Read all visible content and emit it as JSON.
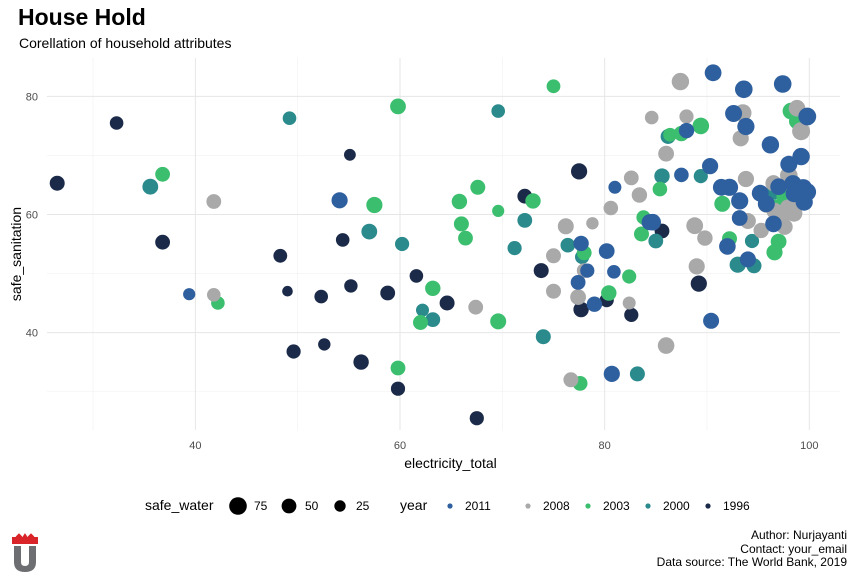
{
  "title": "House Hold",
  "subtitle": "Corellation of household attributes",
  "caption": {
    "author": "Author: Nurjayanti",
    "contact": "Contact: your_email",
    "source": "Data source: The World Bank, 2019"
  },
  "legend": {
    "size_title": "safe_water",
    "size_items": [
      {
        "label": "75",
        "value": 75
      },
      {
        "label": "50",
        "value": 50
      },
      {
        "label": "25",
        "value": 25
      }
    ],
    "color_title": "year",
    "color_items": [
      {
        "label": "2011",
        "color": "#2e5f9e"
      },
      {
        "label": "2008",
        "color": "#a9a9a9"
      },
      {
        "label": "2003",
        "color": "#3bbf6f"
      },
      {
        "label": "2000",
        "color": "#2a8a8c"
      },
      {
        "label": "1996",
        "color": "#1b2a48"
      }
    ]
  },
  "logo": {
    "name": "university-logo",
    "colors": [
      "#d9252a",
      "#6d6e71"
    ]
  },
  "chart_data": {
    "type": "scatter",
    "xlabel": "electricity_total",
    "ylabel": "safe_sanitation",
    "xlim": [
      25.5,
      103
    ],
    "ylim": [
      23.5,
      86.5
    ],
    "xticks": [
      40,
      60,
      80,
      100
    ],
    "yticks": [
      40,
      60,
      80
    ],
    "grid": true,
    "legend_position": "bottom",
    "series": [
      {
        "name": "2011",
        "color": "#2e5f9e",
        "points": [
          [
            39.4,
            46.5,
            30
          ],
          [
            54.1,
            62.4,
            62
          ],
          [
            77.7,
            55.1,
            55
          ],
          [
            80.2,
            53.8,
            58
          ],
          [
            80.9,
            50.3,
            40
          ],
          [
            81.0,
            64.6,
            35
          ],
          [
            84.4,
            58.7,
            62
          ],
          [
            84.7,
            58.7,
            65
          ],
          [
            87.5,
            66.7,
            48
          ],
          [
            88.0,
            74.2,
            55
          ],
          [
            90.6,
            84.0,
            68
          ],
          [
            90.3,
            68.2,
            62
          ],
          [
            91.4,
            64.6,
            68
          ],
          [
            92.2,
            64.6,
            72
          ],
          [
            92.6,
            77.1,
            70
          ],
          [
            93.2,
            62.3,
            72
          ],
          [
            93.8,
            74.9,
            72
          ],
          [
            93.6,
            81.2,
            75
          ],
          [
            95.2,
            63.6,
            68
          ],
          [
            95.8,
            61.8,
            70
          ],
          [
            96.2,
            71.8,
            74
          ],
          [
            97.0,
            64.7,
            65
          ],
          [
            97.4,
            82.1,
            76
          ],
          [
            98.0,
            68.5,
            70
          ],
          [
            98.4,
            65.2,
            74
          ],
          [
            99.0,
            64.2,
            78
          ],
          [
            99.2,
            69.8,
            74
          ],
          [
            99.4,
            64.5,
            76
          ],
          [
            99.5,
            62.1,
            72
          ],
          [
            99.8,
            76.6,
            78
          ],
          [
            99.8,
            63.8,
            76
          ],
          [
            96.5,
            58.4,
            66
          ],
          [
            90.4,
            42.0,
            60
          ],
          [
            80.7,
            33.0,
            62
          ],
          [
            78.3,
            50.5,
            45
          ],
          [
            92.0,
            54.6,
            66
          ],
          [
            94.0,
            52.4,
            60
          ],
          [
            79.0,
            44.8,
            55
          ],
          [
            77.4,
            48.5,
            50
          ],
          [
            93.2,
            59.4,
            58
          ],
          [
            98.5,
            63.5,
            68
          ]
        ]
      },
      {
        "name": "2008",
        "color": "#a9a9a9",
        "points": [
          [
            41.8,
            62.2,
            50
          ],
          [
            41.8,
            46.4,
            40
          ],
          [
            67.4,
            44.3,
            50
          ],
          [
            75.0,
            53.0,
            52
          ],
          [
            75.0,
            47.0,
            52
          ],
          [
            76.2,
            58.0,
            60
          ],
          [
            76.7,
            32.0,
            52
          ],
          [
            77.4,
            46.0,
            58
          ],
          [
            78.0,
            50.5,
            50
          ],
          [
            78.8,
            58.5,
            32
          ],
          [
            80.6,
            61.1,
            48
          ],
          [
            82.4,
            45.0,
            35
          ],
          [
            82.6,
            66.2,
            50
          ],
          [
            83.4,
            63.3,
            55
          ],
          [
            86.0,
            70.3,
            58
          ],
          [
            86.0,
            37.8,
            66
          ],
          [
            87.4,
            82.5,
            74
          ],
          [
            88.0,
            76.6,
            45
          ],
          [
            88.8,
            58.1,
            68
          ],
          [
            89.0,
            51.2,
            62
          ],
          [
            89.8,
            56.0,
            55
          ],
          [
            93.3,
            72.9,
            62
          ],
          [
            93.5,
            77.2,
            74
          ],
          [
            93.8,
            66.0,
            62
          ],
          [
            94.0,
            58.9,
            60
          ],
          [
            95.3,
            57.3,
            55
          ],
          [
            95.8,
            61.7,
            66
          ],
          [
            96.5,
            65.3,
            62
          ],
          [
            97.6,
            57.9,
            60
          ],
          [
            97.9,
            61.2,
            58
          ],
          [
            98.0,
            66.6,
            76
          ],
          [
            98.5,
            60.2,
            68
          ],
          [
            98.8,
            62.7,
            66
          ],
          [
            99.2,
            74.1,
            80
          ],
          [
            98.8,
            78.0,
            66
          ],
          [
            84.6,
            76.4,
            40
          ],
          [
            96.6,
            60.6,
            62
          ],
          [
            97.2,
            59.2,
            66
          ]
        ]
      },
      {
        "name": "2003",
        "color": "#3bbf6f",
        "points": [
          [
            36.8,
            66.8,
            50
          ],
          [
            42.2,
            45.0,
            40
          ],
          [
            57.5,
            61.6,
            62
          ],
          [
            59.8,
            78.3,
            58
          ],
          [
            59.8,
            34.0,
            50
          ],
          [
            62.0,
            41.7,
            52
          ],
          [
            63.2,
            47.5,
            55
          ],
          [
            65.8,
            62.2,
            55
          ],
          [
            66.0,
            58.4,
            52
          ],
          [
            66.4,
            56.0,
            50
          ],
          [
            67.6,
            64.6,
            52
          ],
          [
            69.6,
            41.9,
            60
          ],
          [
            69.6,
            60.6,
            30
          ],
          [
            73.0,
            62.3,
            55
          ],
          [
            75.0,
            81.7,
            42
          ],
          [
            77.6,
            31.4,
            50
          ],
          [
            78.0,
            53.5,
            50
          ],
          [
            80.4,
            46.7,
            55
          ],
          [
            82.4,
            49.5,
            45
          ],
          [
            83.6,
            56.7,
            52
          ],
          [
            83.8,
            59.5,
            45
          ],
          [
            85.4,
            64.3,
            48
          ],
          [
            87.5,
            73.7,
            55
          ],
          [
            89.4,
            75.0,
            66
          ],
          [
            91.5,
            61.8,
            60
          ],
          [
            92.2,
            55.9,
            52
          ],
          [
            96.6,
            53.6,
            62
          ],
          [
            97.0,
            55.4,
            58
          ],
          [
            97.5,
            63.0,
            48
          ],
          [
            98.2,
            77.5,
            66
          ],
          [
            98.8,
            75.8,
            60
          ],
          [
            96.8,
            61.2,
            58
          ],
          [
            86.4,
            73.5,
            42
          ],
          [
            84.0,
            59.2,
            40
          ]
        ]
      },
      {
        "name": "2000",
        "color": "#2a8a8c",
        "points": [
          [
            35.6,
            64.7,
            58
          ],
          [
            49.2,
            76.3,
            40
          ],
          [
            57.0,
            57.1,
            58
          ],
          [
            60.2,
            55.0,
            45
          ],
          [
            62.2,
            43.8,
            35
          ],
          [
            63.2,
            42.2,
            50
          ],
          [
            69.6,
            77.5,
            40
          ],
          [
            71.2,
            54.3,
            45
          ],
          [
            72.2,
            59.0,
            50
          ],
          [
            74.0,
            39.3,
            52
          ],
          [
            76.4,
            54.8,
            48
          ],
          [
            77.8,
            52.8,
            45
          ],
          [
            83.2,
            33.0,
            52
          ],
          [
            85.0,
            55.5,
            50
          ],
          [
            85.6,
            66.5,
            55
          ],
          [
            86.2,
            73.2,
            52
          ],
          [
            89.4,
            66.5,
            45
          ],
          [
            93.0,
            51.5,
            62
          ],
          [
            94.4,
            55.5,
            45
          ],
          [
            94.6,
            51.3,
            52
          ],
          [
            96.5,
            63.8,
            55
          ],
          [
            97.2,
            60.8,
            58
          ]
        ]
      },
      {
        "name": "1996",
        "color": "#1b2a48",
        "points": [
          [
            26.5,
            65.3,
            52
          ],
          [
            32.3,
            75.5,
            40
          ],
          [
            36.8,
            55.3,
            50
          ],
          [
            48.3,
            53.0,
            42
          ],
          [
            49.0,
            47.0,
            20
          ],
          [
            49.6,
            36.8,
            45
          ],
          [
            52.3,
            46.1,
            40
          ],
          [
            52.6,
            38.0,
            32
          ],
          [
            54.4,
            55.7,
            40
          ],
          [
            55.1,
            70.1,
            28
          ],
          [
            55.2,
            47.9,
            38
          ],
          [
            56.2,
            35.0,
            55
          ],
          [
            58.8,
            46.7,
            50
          ],
          [
            59.8,
            30.5,
            45
          ],
          [
            61.6,
            49.6,
            40
          ],
          [
            64.6,
            45.0,
            52
          ],
          [
            67.5,
            25.5,
            45
          ],
          [
            72.2,
            63.1,
            50
          ],
          [
            73.8,
            50.5,
            52
          ],
          [
            77.5,
            67.3,
            62
          ],
          [
            77.7,
            43.9,
            55
          ],
          [
            80.2,
            45.5,
            45
          ],
          [
            82.6,
            43.0,
            45
          ],
          [
            85.6,
            57.2,
            50
          ],
          [
            89.2,
            48.3,
            62
          ],
          [
            99.2,
            76.0,
            52
          ]
        ]
      }
    ]
  }
}
